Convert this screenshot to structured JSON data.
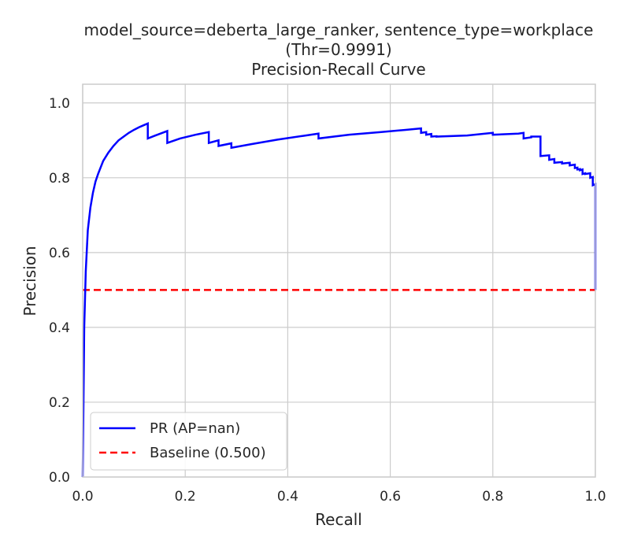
{
  "chart_data": {
    "type": "line",
    "title_lines": [
      "model_source=deberta_large_ranker, sentence_type=workplace",
      "(Thr=0.9991)",
      "Precision-Recall Curve"
    ],
    "xlabel": "Recall",
    "ylabel": "Precision",
    "xlim": [
      0.0,
      1.0
    ],
    "ylim": [
      0.0,
      1.05
    ],
    "xticks": [
      0.0,
      0.2,
      0.4,
      0.6,
      0.8,
      1.0
    ],
    "xtick_labels": [
      "0.0",
      "0.2",
      "0.4",
      "0.6",
      "0.8",
      "1.0"
    ],
    "yticks": [
      0.0,
      0.2,
      0.4,
      0.6,
      0.8,
      1.0
    ],
    "ytick_labels": [
      "0.0",
      "0.2",
      "0.4",
      "0.6",
      "0.8",
      "1.0"
    ],
    "grid": true,
    "legend_position": "lower-left",
    "series": [
      {
        "name": "PR (AP=nan)",
        "color": "#0000ff",
        "style": "solid",
        "x": [
          0.0,
          0.003,
          0.006,
          0.01,
          0.015,
          0.02,
          0.025,
          0.03,
          0.04,
          0.05,
          0.06,
          0.07,
          0.08,
          0.09,
          0.1,
          0.11,
          0.12,
          0.127,
          0.127,
          0.14,
          0.165,
          0.165,
          0.19,
          0.22,
          0.246,
          0.246,
          0.265,
          0.265,
          0.29,
          0.29,
          0.33,
          0.38,
          0.43,
          0.46,
          0.46,
          0.52,
          0.58,
          0.63,
          0.66,
          0.66,
          0.67,
          0.67,
          0.68,
          0.68,
          0.69,
          0.69,
          0.75,
          0.8,
          0.8,
          0.85,
          0.86,
          0.86,
          0.875,
          0.875,
          0.893,
          0.893,
          0.91,
          0.91,
          0.92,
          0.92,
          0.935,
          0.935,
          0.95,
          0.95,
          0.96,
          0.96,
          0.965,
          0.965,
          0.97,
          0.97,
          0.975,
          0.975,
          0.98,
          0.98,
          0.99,
          0.99,
          0.995,
          0.995,
          1.0,
          1.0
        ],
        "y": [
          0.0,
          0.4,
          0.55,
          0.66,
          0.72,
          0.76,
          0.79,
          0.81,
          0.845,
          0.867,
          0.885,
          0.9,
          0.91,
          0.92,
          0.928,
          0.935,
          0.941,
          0.945,
          0.905,
          0.912,
          0.925,
          0.893,
          0.905,
          0.915,
          0.922,
          0.893,
          0.9,
          0.885,
          0.892,
          0.88,
          0.89,
          0.902,
          0.912,
          0.918,
          0.905,
          0.915,
          0.922,
          0.928,
          0.932,
          0.92,
          0.922,
          0.915,
          0.917,
          0.91,
          0.911,
          0.91,
          0.913,
          0.92,
          0.915,
          0.918,
          0.92,
          0.905,
          0.908,
          0.91,
          0.91,
          0.858,
          0.86,
          0.848,
          0.85,
          0.84,
          0.842,
          0.838,
          0.84,
          0.833,
          0.835,
          0.826,
          0.827,
          0.822,
          0.823,
          0.82,
          0.822,
          0.81,
          0.812,
          0.81,
          0.812,
          0.8,
          0.802,
          0.78,
          0.783,
          0.5
        ]
      },
      {
        "name": "Baseline (0.500)",
        "color": "#ff0000",
        "style": "dashed",
        "x": [
          0.0,
          1.0
        ],
        "y": [
          0.5,
          0.5
        ]
      }
    ]
  }
}
